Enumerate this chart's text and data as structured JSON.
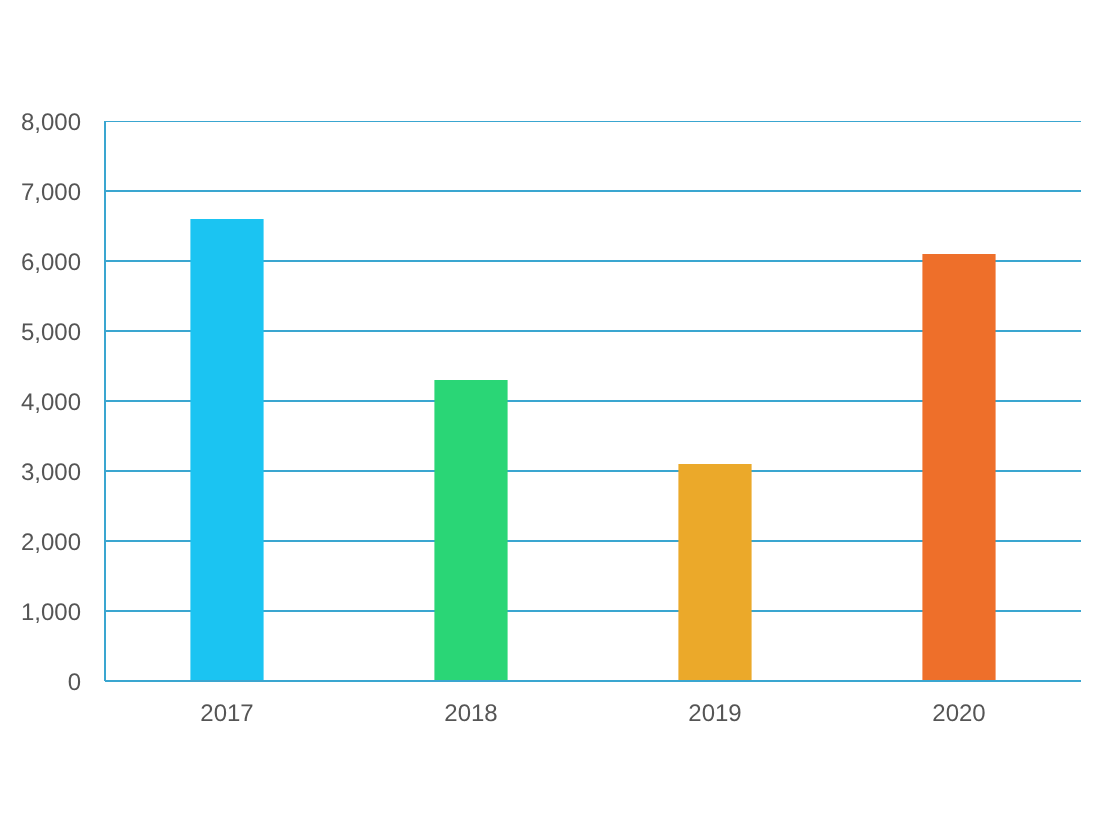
{
  "chart_data": {
    "type": "bar",
    "categories": [
      "2017",
      "2018",
      "2019",
      "2020"
    ],
    "values": [
      6600,
      4300,
      3100,
      6100
    ],
    "colors": [
      "#1bc4f2",
      "#2ad676",
      "#eba92a",
      "#ee6f2a"
    ],
    "ylim": [
      0,
      8000
    ],
    "yticks": [
      {
        "value": 0,
        "label": "0"
      },
      {
        "value": 1000,
        "label": "1,000"
      },
      {
        "value": 2000,
        "label": "2,000"
      },
      {
        "value": 3000,
        "label": "3,000"
      },
      {
        "value": 4000,
        "label": "4,000"
      },
      {
        "value": 5000,
        "label": "5,000"
      },
      {
        "value": 6000,
        "label": "6,000"
      },
      {
        "value": 7000,
        "label": "7,000"
      },
      {
        "value": 8000,
        "label": "8,000"
      }
    ],
    "grid": "y"
  }
}
